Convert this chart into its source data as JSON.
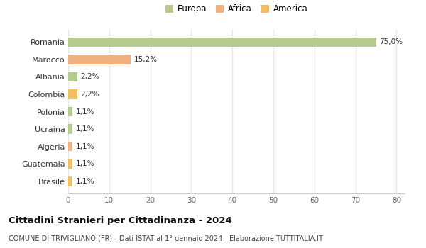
{
  "countries": [
    "Romania",
    "Marocco",
    "Albania",
    "Colombia",
    "Polonia",
    "Ucraina",
    "Algeria",
    "Guatemala",
    "Brasile"
  ],
  "values": [
    75.0,
    15.2,
    2.2,
    2.2,
    1.1,
    1.1,
    1.1,
    1.1,
    1.1
  ],
  "labels": [
    "75,0%",
    "15,2%",
    "2,2%",
    "2,2%",
    "1,1%",
    "1,1%",
    "1,1%",
    "1,1%",
    "1,1%"
  ],
  "colors": [
    "#b5cc8e",
    "#f0b080",
    "#b5cc8e",
    "#f0c060",
    "#b5cc8e",
    "#b5cc8e",
    "#f0b080",
    "#f0c060",
    "#f0c060"
  ],
  "legend": [
    {
      "label": "Europa",
      "color": "#b5cc8e"
    },
    {
      "label": "Africa",
      "color": "#f0b080"
    },
    {
      "label": "America",
      "color": "#f0c060"
    }
  ],
  "xlim": [
    0,
    82
  ],
  "xticks": [
    0,
    10,
    20,
    30,
    40,
    50,
    60,
    70,
    80
  ],
  "title": "Cittadini Stranieri per Cittadinanza - 2024",
  "subtitle": "COMUNE DI TRIVIGLIANO (FR) - Dati ISTAT al 1° gennaio 2024 - Elaborazione TUTTITALIA.IT",
  "background_color": "#ffffff",
  "grid_color": "#e8e8e8",
  "bar_height": 0.55
}
